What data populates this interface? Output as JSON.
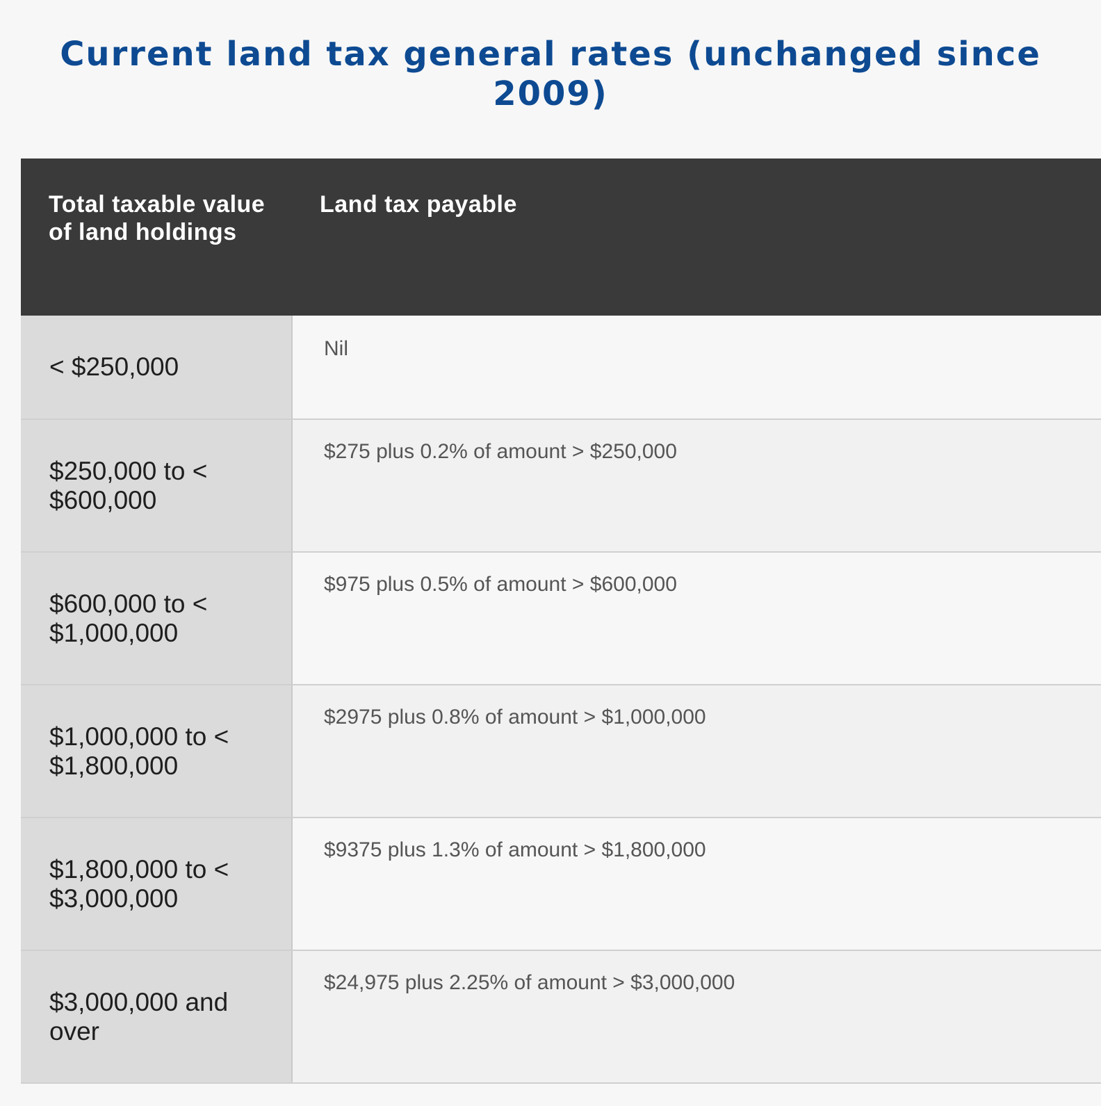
{
  "title": "Current land tax general rates (unchanged since 2009)",
  "table": {
    "headers": {
      "value": "Total taxable value of land holdings",
      "tax": "Land tax payable"
    },
    "rows": [
      {
        "value": "< $250,000",
        "tax": "Nil"
      },
      {
        "value": "$250,000 to < $600,000",
        "tax": "$275 plus 0.2% of amount > $250,000"
      },
      {
        "value": "$600,000 to < $1,000,000",
        "tax": "$975 plus 0.5% of amount > $600,000"
      },
      {
        "value": "$1,000,000 to < $1,800,000",
        "tax": "$2975 plus 0.8% of amount > $1,000,000"
      },
      {
        "value": "$1,800,000 to < $3,000,000",
        "tax": "$9375 plus 1.3% of amount > $1,800,000"
      },
      {
        "value": "$3,000,000 and over",
        "tax": "$24,975 plus 2.25% of amount > $3,000,000"
      }
    ]
  },
  "colors": {
    "title": "#0d4a92",
    "header_bg": "#3a3a3b",
    "first_column_bg": "#dbdbdb"
  }
}
